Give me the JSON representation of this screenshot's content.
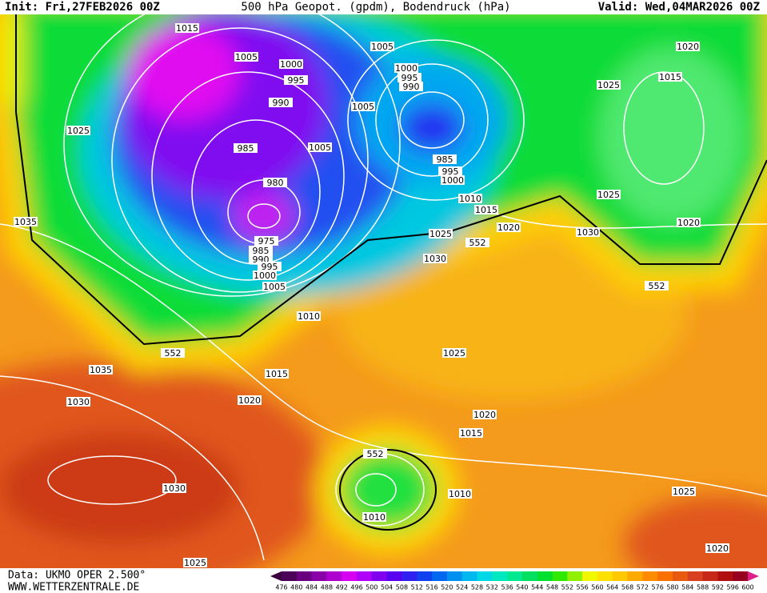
{
  "header": {
    "init": "Init: Fri,27FEB2026 00Z",
    "title": "500 hPa Geopot. (gpdm), Bodendruck (hPa)",
    "valid": "Valid: Wed,04MAR2026 00Z"
  },
  "contour_labels": [
    1015,
    1005,
    1005,
    1000,
    995,
    990,
    1000,
    995,
    990,
    1005,
    1025,
    985,
    1005,
    985,
    995,
    1000,
    980,
    1010,
    1015,
    975,
    985,
    990,
    995,
    1000,
    1005,
    1035,
    1020,
    1025,
    552,
    1030,
    1030,
    1025,
    1020,
    1020,
    1015,
    1025,
    552,
    1010,
    552,
    1025,
    1035,
    1015,
    1030,
    1020,
    1020,
    1015,
    552,
    1010,
    1010,
    1030,
    1025,
    1025,
    1020
  ],
  "legend": {
    "ticks": [
      476,
      480,
      484,
      488,
      492,
      496,
      500,
      504,
      508,
      512,
      516,
      520,
      524,
      528,
      532,
      536,
      540,
      544,
      548,
      552,
      556,
      560,
      564,
      568,
      572,
      576,
      580,
      584,
      588,
      592,
      596,
      600
    ],
    "colors": [
      "#4a0058",
      "#6a0080",
      "#8a00a8",
      "#b000d0",
      "#d800f0",
      "#b000f8",
      "#8000f0",
      "#5a00f0",
      "#3020f0",
      "#1040f0",
      "#0068f0",
      "#0090f0",
      "#00b8f0",
      "#00d8e8",
      "#00e8c0",
      "#00e890",
      "#00e060",
      "#00e030",
      "#30e800",
      "#90f000",
      "#f0f800",
      "#ffe000",
      "#ffc800",
      "#ffa800",
      "#ff8c00",
      "#f87000",
      "#e85a10",
      "#d84020",
      "#c82818",
      "#b01010",
      "#980020"
    ],
    "low_color": "#3a0040",
    "high_color": "#e0208a"
  },
  "footer": {
    "data": "Data: UKMO OPER 2.500°",
    "site": "WWW.WETTERZENTRALE.DE"
  }
}
